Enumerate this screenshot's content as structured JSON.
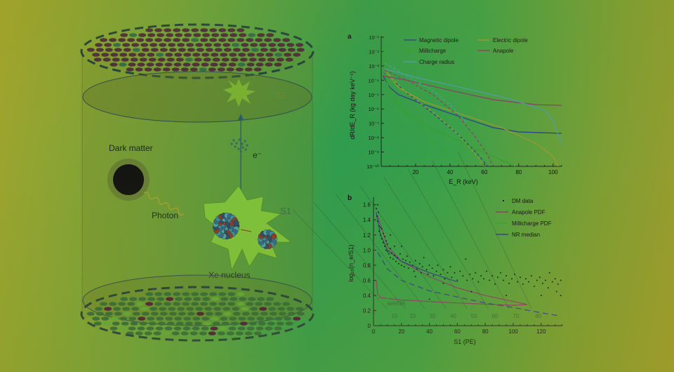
{
  "diagram": {
    "labels": {
      "dark_matter": "Dark matter",
      "photon": "Photon",
      "electron": "e⁻",
      "s1": "S1",
      "s2": "S2",
      "xe_nucleus": "Xe nucleus"
    }
  },
  "chart_data": [
    {
      "panel": "a",
      "type": "line",
      "xlabel": "E_R (keV)",
      "ylabel": "dR/dE_R (kg day keV⁻¹)",
      "xlim": [
        0,
        105
      ],
      "ylim_log10": [
        -10,
        -1
      ],
      "xticks": [
        20,
        40,
        60,
        80,
        100
      ],
      "yticks": [
        "10⁻¹",
        "10⁻²",
        "10⁻³",
        "10⁻⁴",
        "10⁻⁵",
        "10⁻⁶",
        "10⁻⁷",
        "10⁻⁸",
        "10⁻⁹",
        "10⁻¹⁰"
      ],
      "legend_position": "top",
      "series": [
        {
          "name": "Magnetic dipole",
          "color": "#2f3f8c",
          "solid": [
            [
              1,
              -3.7
            ],
            [
              5,
              -4.5
            ],
            [
              10,
              -5.0
            ],
            [
              25,
              -5.7
            ],
            [
              45,
              -6.5
            ],
            [
              65,
              -7.3
            ],
            [
              80,
              -7.6
            ],
            [
              105,
              -7.7
            ]
          ],
          "dashed": [
            [
              2,
              -3.5
            ],
            [
              15,
              -4.9
            ],
            [
              30,
              -6.3
            ],
            [
              45,
              -7.8
            ],
            [
              55,
              -9.0
            ],
            [
              62,
              -10
            ]
          ]
        },
        {
          "name": "Electric dipole",
          "color": "#9c9a2e",
          "solid": [
            [
              2,
              -3.3
            ],
            [
              10,
              -4.5
            ],
            [
              25,
              -5.5
            ],
            [
              50,
              -6.5
            ],
            [
              70,
              -7.3
            ],
            [
              90,
              -8.4
            ],
            [
              100,
              -9.3
            ],
            [
              103,
              -10
            ]
          ],
          "dashed": [
            [
              2,
              -3.3
            ],
            [
              15,
              -4.9
            ],
            [
              30,
              -6.2
            ],
            [
              45,
              -7.8
            ],
            [
              55,
              -9.2
            ],
            [
              60,
              -10
            ]
          ]
        },
        {
          "name": "Millicharge",
          "color": "#35a02e",
          "solid": [
            [
              1,
              -1.5
            ],
            [
              3,
              -4.0
            ],
            [
              6,
              -5.2
            ],
            [
              15,
              -6.3
            ],
            [
              30,
              -7.4
            ],
            [
              50,
              -8.5
            ],
            [
              65,
              -9.3
            ],
            [
              78,
              -10
            ]
          ],
          "dashed": [
            [
              1,
              -2.5
            ],
            [
              5,
              -4.6
            ],
            [
              15,
              -6.5
            ],
            [
              30,
              -8.2
            ],
            [
              40,
              -9.3
            ],
            [
              47,
              -10
            ]
          ]
        },
        {
          "name": "Anapole",
          "color": "#8c3c6a",
          "solid": [
            [
              1,
              -3.7
            ],
            [
              15,
              -4.0
            ],
            [
              40,
              -4.7
            ],
            [
              65,
              -5.35
            ],
            [
              90,
              -5.7
            ],
            [
              105,
              -5.75
            ]
          ],
          "dashed": [
            [
              2,
              -3.3
            ],
            [
              15,
              -4.0
            ],
            [
              30,
              -5.0
            ],
            [
              45,
              -6.5
            ],
            [
              55,
              -8.0
            ],
            [
              62,
              -9.2
            ],
            [
              65,
              -10
            ]
          ]
        },
        {
          "name": "Charge radius",
          "color": "#4c9fa4",
          "solid": [
            [
              2,
              -3.2
            ],
            [
              20,
              -3.8
            ],
            [
              50,
              -4.6
            ],
            [
              75,
              -5.3
            ],
            [
              95,
              -6.1
            ],
            [
              100,
              -6.8
            ],
            [
              105,
              -8.5
            ]
          ],
          "dashed": [
            [
              2,
              -2.8
            ],
            [
              15,
              -3.7
            ],
            [
              30,
              -4.7
            ],
            [
              42,
              -5.9
            ],
            [
              50,
              -7.0
            ]
          ]
        }
      ]
    },
    {
      "panel": "b",
      "type": "scatter",
      "xlabel": "S1 (PE)",
      "ylabel": "log₁₀(n_e/S1)",
      "xlim": [
        0,
        135
      ],
      "ylim": [
        0,
        1.7
      ],
      "xticks": [
        0,
        20,
        40,
        60,
        80,
        100,
        120
      ],
      "yticks": [
        0,
        0.2,
        0.4,
        0.6,
        0.8,
        1.0,
        1.2,
        1.4,
        1.6
      ],
      "ytick_labels": [
        "0",
        "0.2",
        "0.4",
        "0.6",
        "0.8",
        "1.0",
        "1.2",
        "1.4",
        "1.6"
      ],
      "legend_position": "top-right",
      "legend": [
        "DM data",
        "Anapole PDF",
        "Millicharge PDF",
        "NR median"
      ],
      "energy_contour_unit": "keVNR",
      "energy_contours": [
        {
          "label": "10",
          "s1": 15
        },
        {
          "label": "20",
          "s1": 28
        },
        {
          "label": "30",
          "s1": 42
        },
        {
          "label": "40",
          "s1": 57
        },
        {
          "label": "50",
          "s1": 72
        },
        {
          "label": "60",
          "s1": 87
        },
        {
          "label": "70",
          "s1": 102
        },
        {
          "label": "80",
          "s1": 118
        }
      ],
      "dm_data": [
        [
          2,
          1.55
        ],
        [
          2.5,
          1.45
        ],
        [
          3,
          1.6
        ],
        [
          3,
          1.38
        ],
        [
          3.5,
          1.5
        ],
        [
          4,
          1.32
        ],
        [
          4,
          1.25
        ],
        [
          5,
          1.3
        ],
        [
          5,
          1.2
        ],
        [
          6,
          1.28
        ],
        [
          6,
          1.15
        ],
        [
          7,
          1.1
        ],
        [
          7,
          1.22
        ],
        [
          8,
          1.05
        ],
        [
          8,
          1.18
        ],
        [
          9,
          1.0
        ],
        [
          9,
          1.12
        ],
        [
          10,
          0.98
        ],
        [
          10,
          1.08
        ],
        [
          11,
          0.95
        ],
        [
          12,
          1.02
        ],
        [
          12,
          0.9
        ],
        [
          12,
          1.2
        ],
        [
          13,
          0.96
        ],
        [
          14,
          0.88
        ],
        [
          15,
          0.93
        ],
        [
          15,
          1.05
        ],
        [
          16,
          0.85
        ],
        [
          17,
          0.9
        ],
        [
          18,
          0.82
        ],
        [
          19,
          0.95
        ],
        [
          20,
          0.8
        ],
        [
          20,
          1.05
        ],
        [
          21,
          0.88
        ],
        [
          22,
          0.78
        ],
        [
          23,
          0.86
        ],
        [
          24,
          0.92
        ],
        [
          25,
          0.76
        ],
        [
          26,
          0.84
        ],
        [
          28,
          0.8
        ],
        [
          29,
          0.72
        ],
        [
          30,
          0.86
        ],
        [
          30,
          0.65
        ],
        [
          31,
          0.75
        ],
        [
          33,
          0.82
        ],
        [
          34,
          0.7
        ],
        [
          35,
          0.78
        ],
        [
          36,
          0.9
        ],
        [
          38,
          0.74
        ],
        [
          39,
          0.68
        ],
        [
          40,
          0.8
        ],
        [
          40,
          0.35
        ],
        [
          42,
          0.76
        ],
        [
          43,
          0.66
        ],
        [
          45,
          0.72
        ],
        [
          46,
          0.8
        ],
        [
          48,
          0.68
        ],
        [
          50,
          0.74
        ],
        [
          50,
          0.56
        ],
        [
          51,
          0.62
        ],
        [
          53,
          0.7
        ],
        [
          55,
          0.78
        ],
        [
          56,
          0.64
        ],
        [
          58,
          0.7
        ],
        [
          60,
          0.6
        ],
        [
          62,
          0.72
        ],
        [
          64,
          0.66
        ],
        [
          66,
          0.88
        ],
        [
          67,
          0.6
        ],
        [
          69,
          0.68
        ],
        [
          70,
          0.45
        ],
        [
          71,
          0.62
        ],
        [
          73,
          0.7
        ],
        [
          75,
          0.58
        ],
        [
          77,
          0.66
        ],
        [
          79,
          0.62
        ],
        [
          81,
          0.72
        ],
        [
          83,
          0.6
        ],
        [
          85,
          0.66
        ],
        [
          87,
          0.55
        ],
        [
          89,
          0.64
        ],
        [
          91,
          0.7
        ],
        [
          93,
          0.6
        ],
        [
          95,
          0.66
        ],
        [
          95,
          0.4
        ],
        [
          97,
          0.56
        ],
        [
          99,
          0.62
        ],
        [
          101,
          0.68
        ],
        [
          103,
          0.58
        ],
        [
          105,
          0.64
        ],
        [
          107,
          0.55
        ],
        [
          109,
          0.62
        ],
        [
          111,
          0.58
        ],
        [
          113,
          0.66
        ],
        [
          115,
          0.52
        ],
        [
          117,
          0.6
        ],
        [
          119,
          0.64
        ],
        [
          120,
          0.4
        ],
        [
          121,
          0.56
        ],
        [
          123,
          0.6
        ],
        [
          125,
          0.5
        ],
        [
          126,
          0.7
        ],
        [
          128,
          0.58
        ],
        [
          130,
          0.62
        ],
        [
          131,
          0.45
        ],
        [
          132,
          0.55
        ],
        [
          134,
          0.6
        ],
        [
          134,
          0.4
        ]
      ],
      "lines": [
        {
          "name": "Anapole PDF",
          "color": "#8c3c6a",
          "style": "solid",
          "points": [
            [
              3,
              1.45
            ],
            [
              10,
              1.05
            ],
            [
              20,
              0.85
            ],
            [
              40,
              0.65
            ],
            [
              60,
              0.5
            ],
            [
              80,
              0.4
            ],
            [
              100,
              0.32
            ],
            [
              110,
              0.28
            ],
            [
              100,
              0.27
            ],
            [
              60,
              0.3
            ],
            [
              20,
              0.34
            ],
            [
              5,
              0.37
            ],
            [
              3,
              0.42
            ],
            [
              2,
              0.6
            ]
          ]
        },
        {
          "name": "Millicharge PDF",
          "color": "#3aa52c",
          "style": "solid",
          "points": [
            [
              3,
              0.4
            ],
            [
              5,
              0.3
            ],
            [
              8,
              0.32
            ],
            [
              15,
              0.45
            ],
            [
              22,
              0.55
            ],
            [
              24,
              0.6
            ],
            [
              22,
              0.75
            ],
            [
              15,
              0.85
            ],
            [
              8,
              1.1
            ],
            [
              4,
              1.3
            ]
          ]
        },
        {
          "name": "NR median",
          "color": "#2f3f8c",
          "style": "dashed",
          "points": [
            [
              3,
              0.97
            ],
            [
              10,
              0.75
            ],
            [
              20,
              0.6
            ],
            [
              40,
              0.46
            ],
            [
              60,
              0.38
            ],
            [
              80,
              0.3
            ],
            [
              100,
              0.24
            ],
            [
              120,
              0.17
            ],
            [
              133,
              0.13
            ]
          ]
        },
        {
          "name": "NR contour",
          "color": "#2f3f8c",
          "style": "solid",
          "points": [
            [
              2,
              1.5
            ],
            [
              5,
              1.2
            ],
            [
              10,
              1.0
            ],
            [
              20,
              0.85
            ],
            [
              40,
              0.7
            ],
            [
              60,
              0.58
            ]
          ]
        }
      ]
    }
  ]
}
